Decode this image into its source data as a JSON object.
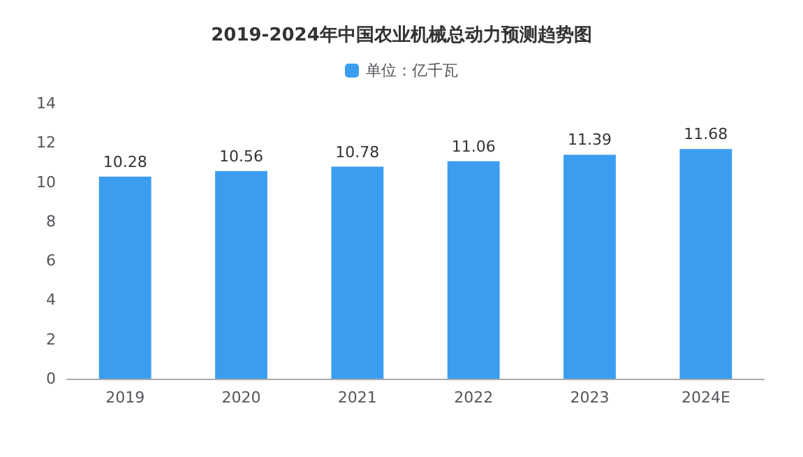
{
  "chart_data": {
    "type": "bar",
    "title": "2019-2024年中国农业机械总动力预测趋势图",
    "categories": [
      "2019",
      "2020",
      "2021",
      "2022",
      "2023",
      "2024E"
    ],
    "series": [
      {
        "name": "单位：亿千瓦",
        "color": "#3b9df0",
        "values": [
          10.28,
          10.56,
          10.78,
          11.06,
          11.39,
          11.68
        ]
      }
    ],
    "ylim": [
      0,
      14
    ],
    "yticks": [
      0,
      2,
      4,
      6,
      8,
      10,
      12,
      14
    ],
    "grid": false,
    "legend": "top",
    "data_labels": true
  }
}
